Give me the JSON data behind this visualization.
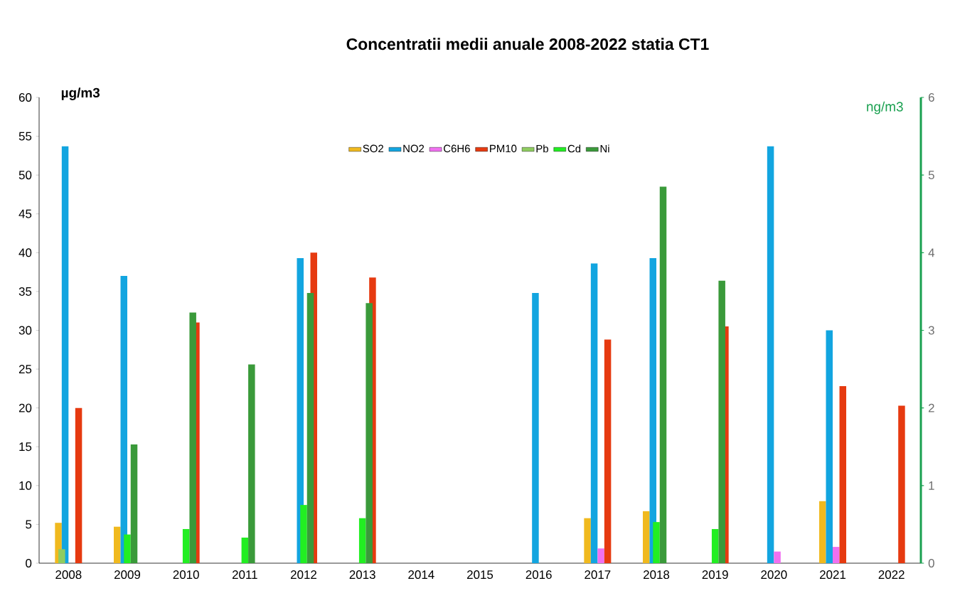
{
  "chart_data": {
    "type": "bar",
    "title": "Concentratii medii anuale 2008-2022 statia CT1",
    "ylabel": "µg/m3",
    "y2label": "ng/m3",
    "categories": [
      "2008",
      "2009",
      "2010",
      "2011",
      "2012",
      "2013",
      "2014",
      "2015",
      "2016",
      "2017",
      "2018",
      "2019",
      "2020",
      "2021",
      "2022"
    ],
    "series": [
      {
        "name": "SO2",
        "color": "#f0b91e",
        "values": [
          5.2,
          4.7,
          null,
          null,
          null,
          null,
          null,
          null,
          null,
          5.8,
          6.7,
          null,
          null,
          8.0,
          null
        ]
      },
      {
        "name": "NO2",
        "color": "#12a5e0",
        "values": [
          53.7,
          37.0,
          null,
          null,
          39.3,
          null,
          null,
          null,
          34.8,
          38.6,
          39.3,
          null,
          53.7,
          30.0,
          null
        ]
      },
      {
        "name": "C6H6",
        "color": "#f070f0",
        "values": [
          null,
          null,
          null,
          null,
          null,
          null,
          null,
          null,
          null,
          1.9,
          null,
          null,
          1.5,
          2.1,
          null
        ]
      },
      {
        "name": "PM10",
        "color": "#e63a10",
        "values": [
          20.0,
          null,
          31.0,
          null,
          40.0,
          36.8,
          null,
          null,
          null,
          28.8,
          null,
          30.5,
          null,
          22.8,
          20.3
        ]
      },
      {
        "name": "Pb",
        "color": "#8fcc60",
        "axis": "y2",
        "values": [
          0.18,
          null,
          null,
          null,
          null,
          null,
          null,
          null,
          null,
          null,
          null,
          null,
          null,
          null,
          null
        ]
      },
      {
        "name": "Cd",
        "color": "#22ee22",
        "axis": "y2",
        "values": [
          null,
          0.37,
          0.44,
          0.33,
          0.75,
          0.58,
          null,
          null,
          null,
          null,
          0.53,
          0.44,
          null,
          null,
          null
        ]
      },
      {
        "name": "Ni",
        "color": "#3a9a3a",
        "axis": "y2",
        "values": [
          null,
          1.53,
          3.23,
          2.56,
          3.48,
          3.35,
          null,
          null,
          null,
          null,
          4.85,
          3.64,
          null,
          null,
          null
        ]
      }
    ],
    "ylim": [
      0,
      60
    ],
    "yticks": [
      0,
      5,
      10,
      15,
      20,
      25,
      30,
      35,
      40,
      45,
      50,
      55,
      60
    ],
    "y2lim": [
      0,
      6
    ],
    "y2ticks": [
      0,
      1,
      2,
      3,
      4,
      5,
      6
    ],
    "legend": "top",
    "grid": false
  }
}
